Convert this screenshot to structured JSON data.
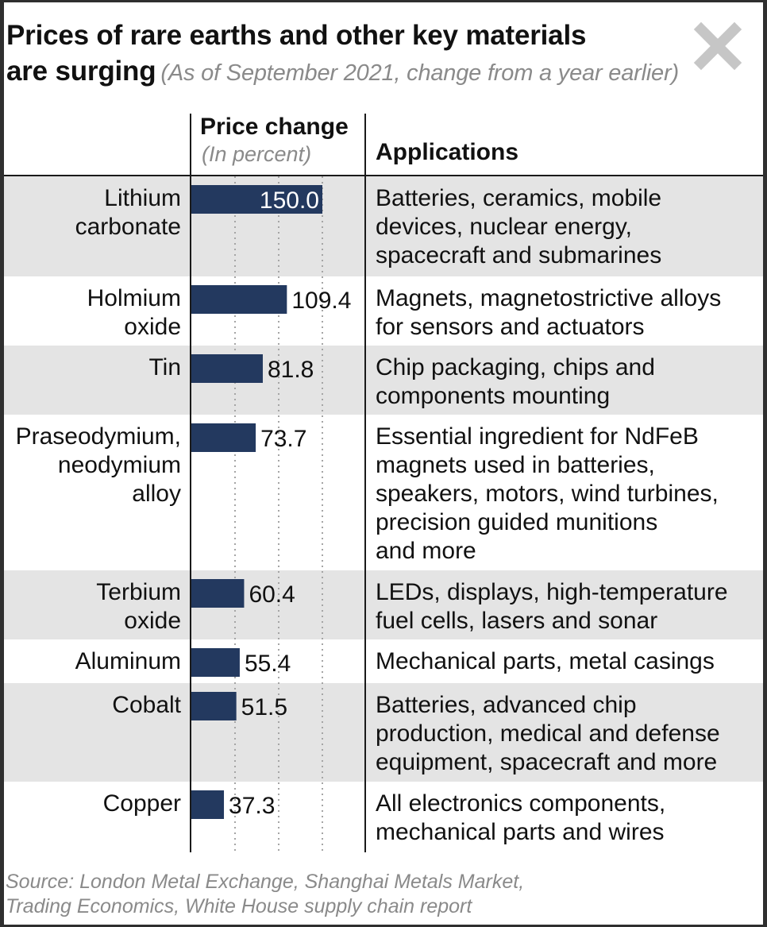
{
  "title_line1": "Prices of rare earths and other key materials",
  "title_line2": "are surging",
  "subtitle": "(As of September 2021, change from a year earlier)",
  "columns": {
    "price_header": "Price change",
    "price_unit": "(In percent)",
    "applications_header": "Applications"
  },
  "source": "Source: London Metal Exchange, Shanghai Metals Market,\nTrading Economics, White House supply chain report",
  "colors": {
    "bar": "#23395f",
    "row_shade": "#e4e4e4",
    "grid": "#a5a5a5",
    "close_icon": "#c6c6c6"
  },
  "icons": {
    "close": "close-icon"
  },
  "chart_data": {
    "type": "bar",
    "orientation": "horizontal",
    "title": "Prices of rare earths and other key materials are surging",
    "subtitle": "(As of September 2021, change from a year earlier)",
    "xlabel": "Price change (In percent)",
    "ylabel": "",
    "xlim": [
      0,
      160
    ],
    "grid": true,
    "value_format": "one decimal",
    "categories": [
      "Lithium\ncarbonate",
      "Holmium\noxide",
      "Tin",
      "Praseodymium,\nneodymium\nalloy",
      "Terbium\noxide",
      "Aluminum",
      "Cobalt",
      "Copper"
    ],
    "values": [
      150.0,
      109.4,
      81.8,
      73.7,
      60.4,
      55.4,
      51.5,
      37.3
    ],
    "applications": [
      "Batteries, ceramics, mobile\ndevices, nuclear energy,\nspacecraft and submarines",
      "Magnets, magnetostrictive alloys\nfor sensors and actuators",
      "Chip packaging, chips and\ncomponents mounting",
      "Essential ingredient for NdFeB\nmagnets used in batteries,\nspeakers, motors, wind turbines,\nprecision guided munitions\nand more",
      "LEDs, displays, high-temperature\nfuel cells, lasers and sonar",
      "Mechanical parts, metal casings",
      "Batteries, advanced chip\nproduction, medical and defense\nequipment, spacecraft and more",
      "All electronics components,\nmechanical parts and wires"
    ]
  }
}
